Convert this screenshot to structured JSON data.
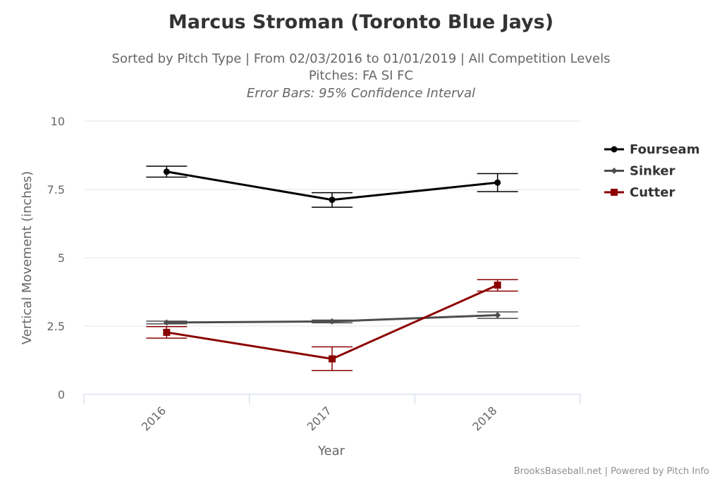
{
  "chart_data": {
    "type": "line",
    "title": "Marcus Stroman (Toronto Blue Jays)",
    "subtitle_lines": [
      "Sorted by Pitch Type | From 02/03/2016 to 01/01/2019 | All Competition Levels",
      "Pitches: FA SI FC"
    ],
    "error_bar_note": "Error Bars: 95% Confidence Interval",
    "xlabel": "Year",
    "ylabel": "Vertical Movement (inches)",
    "categories": [
      "2016",
      "2017",
      "2018"
    ],
    "ylim": [
      0,
      10
    ],
    "y_ticks": [
      0,
      2.5,
      5,
      7.5,
      10
    ],
    "y_tick_labels": [
      "0",
      "2.5",
      "5",
      "7.5",
      "10"
    ],
    "grid": true,
    "legend_position": "right",
    "series": [
      {
        "name": "Fourseam",
        "color": "#000000",
        "marker": "circle",
        "values": [
          8.15,
          7.12,
          7.75
        ],
        "error_low": [
          7.95,
          6.85,
          7.42
        ],
        "error_high": [
          8.35,
          7.38,
          8.08
        ]
      },
      {
        "name": "Sinker",
        "color": "#4d4d4d",
        "marker": "diamond",
        "values": [
          2.63,
          2.67,
          2.9
        ],
        "error_low": [
          2.58,
          2.62,
          2.78
        ],
        "error_high": [
          2.68,
          2.72,
          3.02
        ]
      },
      {
        "name": "Cutter",
        "color": "#8b0000",
        "marker": "square",
        "values": [
          2.27,
          1.3,
          4.0
        ],
        "error_low": [
          2.06,
          0.87,
          3.78
        ],
        "error_high": [
          2.48,
          1.74,
          4.2
        ]
      }
    ]
  },
  "credits": "BrooksBaseball.net | Powered by Pitch Info"
}
